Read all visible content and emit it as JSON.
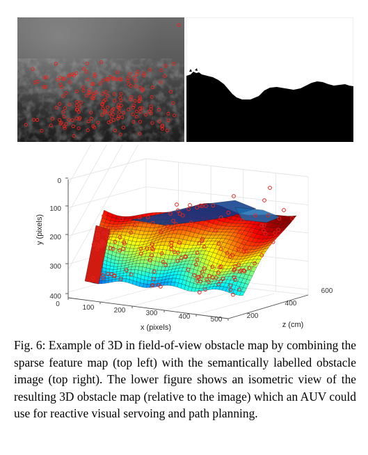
{
  "figure": {
    "top_left": {
      "alt_label": "sparse feature map",
      "marker_color": "#e3261e"
    },
    "top_right": {
      "alt_label": "semantically labelled obstacle image"
    },
    "bottom": {
      "chart_data": {
        "type": "surface3d",
        "title": "",
        "xlabel": "x (pixels)",
        "ylabel": "y (pixels)",
        "zlabel": "z (cm)",
        "x_ticks": [
          "100",
          "200",
          "300",
          "400",
          "500"
        ],
        "y_ticks": [
          "0",
          "100",
          "200",
          "300",
          "400"
        ],
        "z_ticks": [
          "200",
          "400",
          "600"
        ],
        "x_origin_label": "0",
        "colormap": "jet",
        "marker_color": "#e3261e"
      }
    }
  },
  "caption": {
    "label": "Fig. 6:",
    "text": " Example of 3D in field-of-view obstacle map by combining the sparse feature map (top left) with the semantically labelled obstacle image (top right). The lower figure shows an isometric view of the resulting 3D obstacle map (relative to the image) which an AUV could use for reactive visual servoing and path planning."
  }
}
